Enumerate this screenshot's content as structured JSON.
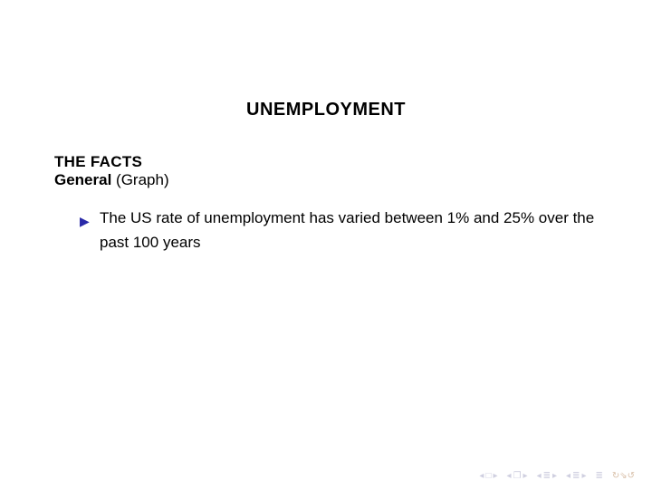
{
  "slide": {
    "title": "UNEMPLOYMENT",
    "section_heading": "THE FACTS",
    "sub_heading_bold": "General",
    "sub_heading_rest": " (Graph)",
    "bullets": [
      "The US rate of unemployment has varied between 1% and 25% over the past 100 years"
    ]
  },
  "nav": {
    "first": "◂ □ ▸",
    "prev": "◂ 🗗 ▸",
    "back": "◂ ≣ ▸",
    "forward": "◂ ≣ ▸",
    "summary": "≣",
    "redo": "↻⇘↺"
  },
  "colors": {
    "bullet_marker": "#2929a8",
    "nav_gray": "#cfcfe0",
    "nav_redo": "#d8bfa8",
    "text": "#000000",
    "background": "#ffffff"
  },
  "typography": {
    "title_fontsize": 20,
    "heading_fontsize": 17,
    "body_fontsize": 17,
    "nav_fontsize": 11
  }
}
